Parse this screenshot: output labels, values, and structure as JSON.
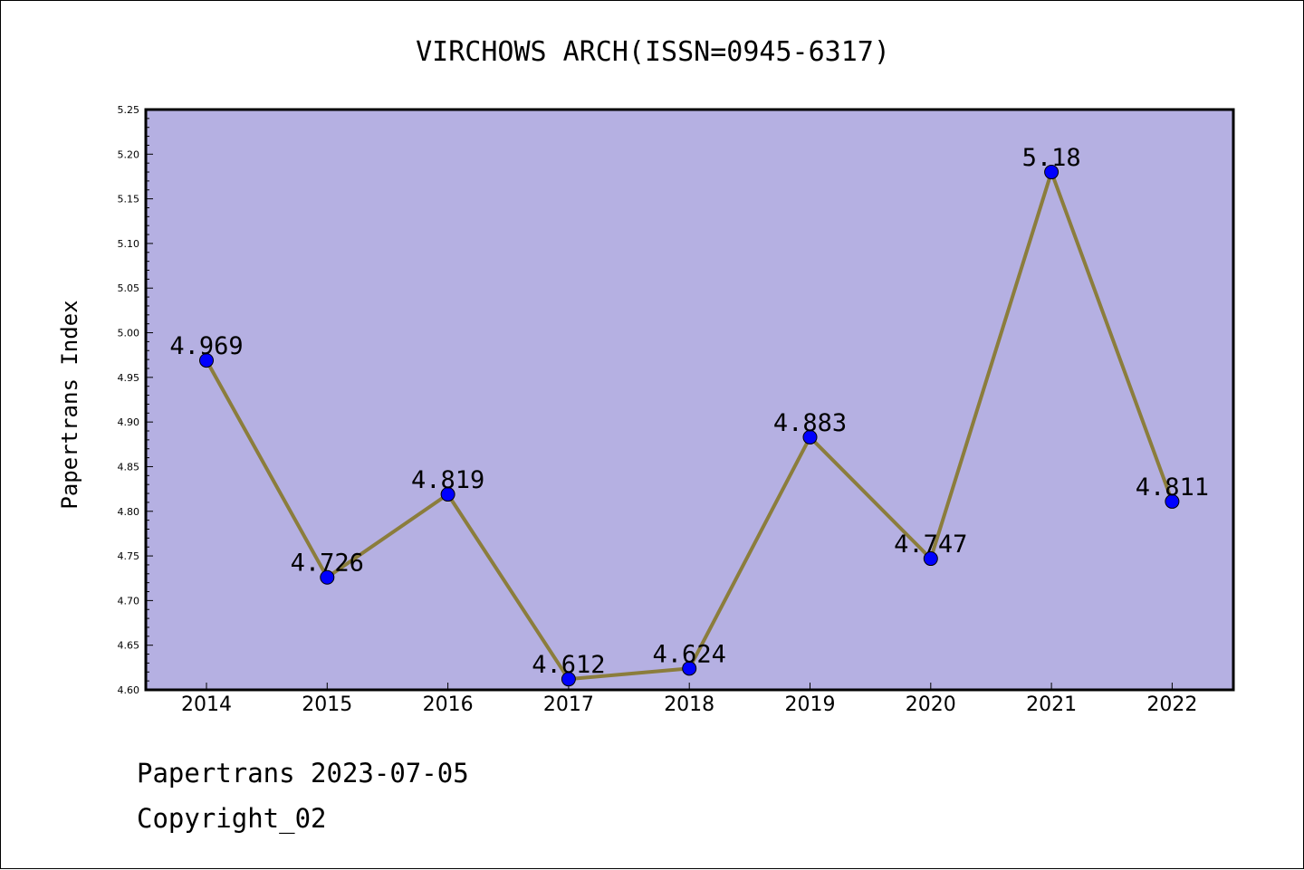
{
  "chart_data": {
    "type": "line",
    "title": "VIRCHOWS ARCH(ISSN=0945-6317)",
    "xlabel": "",
    "ylabel": "Papertrans Index",
    "categories": [
      "2014",
      "2015",
      "2016",
      "2017",
      "2018",
      "2019",
      "2020",
      "2021",
      "2022"
    ],
    "series": [
      {
        "values": [
          4.969,
          4.726,
          4.819,
          4.612,
          4.624,
          4.883,
          4.747,
          5.18,
          4.811
        ],
        "labels": [
          "4.969",
          "4.726",
          "4.819",
          "4.612",
          "4.624",
          "4.883",
          "4.747",
          "5.18",
          "4.811"
        ]
      }
    ],
    "ylim": [
      4.6,
      5.25
    ],
    "yticks": [
      "4.60",
      "4.65",
      "4.70",
      "4.75",
      "4.80",
      "4.85",
      "4.90",
      "4.95",
      "5.00",
      "5.05",
      "5.10",
      "5.15",
      "5.20",
      "5.25"
    ],
    "grid": false,
    "legend": "none",
    "colors": {
      "plot_background": "#b5b0e2",
      "line": "#8b7d3c",
      "marker": "#0000ff",
      "marker_edge": "#000000"
    }
  },
  "footer": {
    "date_line": "Papertrans 2023-07-05",
    "copyright_line": "Copyright_02"
  }
}
